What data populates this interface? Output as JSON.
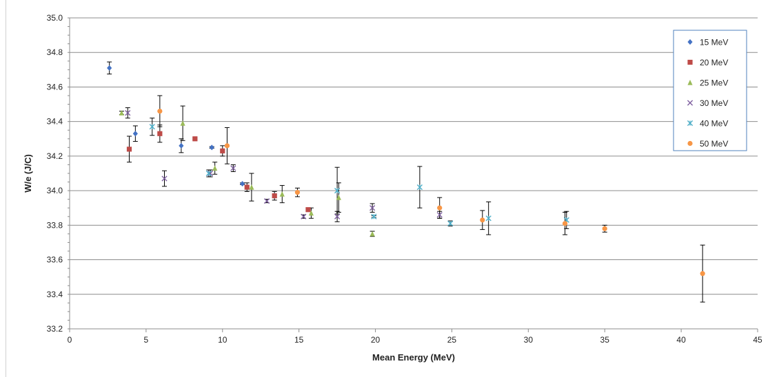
{
  "chart_data": {
    "type": "scatter",
    "title": "",
    "xlabel": "Mean Energy (MeV)",
    "ylabel": "W/e (J/C)",
    "xlim": [
      0,
      45
    ],
    "ylim": [
      33.2,
      35.0
    ],
    "xticks": [
      0,
      5,
      10,
      15,
      20,
      25,
      30,
      35,
      40,
      45
    ],
    "yticks": [
      33.2,
      33.4,
      33.6,
      33.8,
      34.0,
      34.2,
      34.4,
      34.6,
      34.8,
      35.0
    ],
    "tick_labels_x": [
      "0",
      "5",
      "10",
      "15",
      "20",
      "25",
      "30",
      "35",
      "40",
      "45"
    ],
    "tick_labels_y": [
      "33.2",
      "33.4",
      "33.6",
      "33.8",
      "34.0",
      "34.2",
      "34.4",
      "34.6",
      "34.8",
      "35.0"
    ],
    "grid": "horizontal",
    "legend_position": "top-right",
    "series": [
      {
        "name": "15 MeV",
        "marker": "diamond",
        "color": "#4472c4",
        "points": [
          {
            "x": 2.6,
            "y": 34.71,
            "err": 0.035
          },
          {
            "x": 4.3,
            "y": 34.33,
            "err": 0.045
          },
          {
            "x": 7.3,
            "y": 34.26,
            "err": 0.04
          },
          {
            "x": 9.3,
            "y": 34.25,
            "err": 0.005
          },
          {
            "x": 11.3,
            "y": 34.04,
            "err": 0.005
          },
          {
            "x": 13.4,
            "y": 33.97,
            "err": 0.01
          }
        ]
      },
      {
        "name": "20 MeV",
        "marker": "square",
        "color": "#be4b48",
        "points": [
          {
            "x": 3.9,
            "y": 34.24,
            "err": 0.075
          },
          {
            "x": 5.9,
            "y": 34.33,
            "err": 0.05
          },
          {
            "x": 8.2,
            "y": 34.3,
            "err": 0.005
          },
          {
            "x": 10.0,
            "y": 34.23,
            "err": 0.03
          },
          {
            "x": 11.6,
            "y": 34.02,
            "err": 0.025
          },
          {
            "x": 13.4,
            "y": 33.97,
            "err": 0.025
          },
          {
            "x": 15.6,
            "y": 33.89,
            "err": 0.01
          }
        ]
      },
      {
        "name": "25 MeV",
        "marker": "triangle",
        "color": "#9bbb59",
        "points": [
          {
            "x": 3.4,
            "y": 34.45,
            "err": 0.01
          },
          {
            "x": 7.4,
            "y": 34.39,
            "err": 0.1
          },
          {
            "x": 9.5,
            "y": 34.13,
            "err": 0.035
          },
          {
            "x": 11.9,
            "y": 34.02,
            "err": 0.08
          },
          {
            "x": 13.9,
            "y": 33.98,
            "err": 0.05
          },
          {
            "x": 15.8,
            "y": 33.87,
            "err": 0.03
          },
          {
            "x": 17.6,
            "y": 33.96,
            "err": 0.085
          },
          {
            "x": 19.8,
            "y": 33.75,
            "err": 0.015
          }
        ]
      },
      {
        "name": "30 MeV",
        "marker": "x",
        "color": "#7e5fa0",
        "points": [
          {
            "x": 3.8,
            "y": 34.45,
            "err": 0.03
          },
          {
            "x": 6.2,
            "y": 34.07,
            "err": 0.045
          },
          {
            "x": 9.2,
            "y": 34.1,
            "err": 0.02
          },
          {
            "x": 10.7,
            "y": 34.13,
            "err": 0.02
          },
          {
            "x": 12.9,
            "y": 33.94,
            "err": 0.01
          },
          {
            "x": 15.3,
            "y": 33.85,
            "err": 0.01
          },
          {
            "x": 17.5,
            "y": 33.85,
            "err": 0.03
          },
          {
            "x": 19.8,
            "y": 33.9,
            "err": 0.025
          },
          {
            "x": 24.2,
            "y": 33.86,
            "err": 0.02
          }
        ]
      },
      {
        "name": "40 MeV",
        "marker": "star",
        "color": "#4bacc6",
        "points": [
          {
            "x": 5.4,
            "y": 34.37,
            "err": 0.05
          },
          {
            "x": 9.1,
            "y": 34.1,
            "err": 0.02
          },
          {
            "x": 17.5,
            "y": 34.0,
            "err": 0.135
          },
          {
            "x": 19.9,
            "y": 33.85,
            "err": 0.005
          },
          {
            "x": 22.9,
            "y": 34.02,
            "err": 0.12
          },
          {
            "x": 24.9,
            "y": 33.81,
            "err": 0.015
          },
          {
            "x": 27.4,
            "y": 33.84,
            "err": 0.095
          },
          {
            "x": 32.5,
            "y": 33.83,
            "err": 0.05
          }
        ]
      },
      {
        "name": "50 MeV",
        "marker": "circle",
        "color": "#f79646",
        "points": [
          {
            "x": 5.9,
            "y": 34.46,
            "err": 0.09
          },
          {
            "x": 10.3,
            "y": 34.26,
            "err": 0.105
          },
          {
            "x": 14.9,
            "y": 33.99,
            "err": 0.025
          },
          {
            "x": 24.2,
            "y": 33.9,
            "err": 0.06
          },
          {
            "x": 27.0,
            "y": 33.83,
            "err": 0.055
          },
          {
            "x": 32.4,
            "y": 33.81,
            "err": 0.065
          },
          {
            "x": 35.0,
            "y": 33.78,
            "err": 0.02
          },
          {
            "x": 41.4,
            "y": 33.52,
            "err": 0.165
          }
        ]
      }
    ]
  },
  "colors": {
    "grid": "#8c8c8c",
    "axis": "#8c8c8c",
    "error_bar": "#000000",
    "legend_border": "#4f81bd"
  }
}
